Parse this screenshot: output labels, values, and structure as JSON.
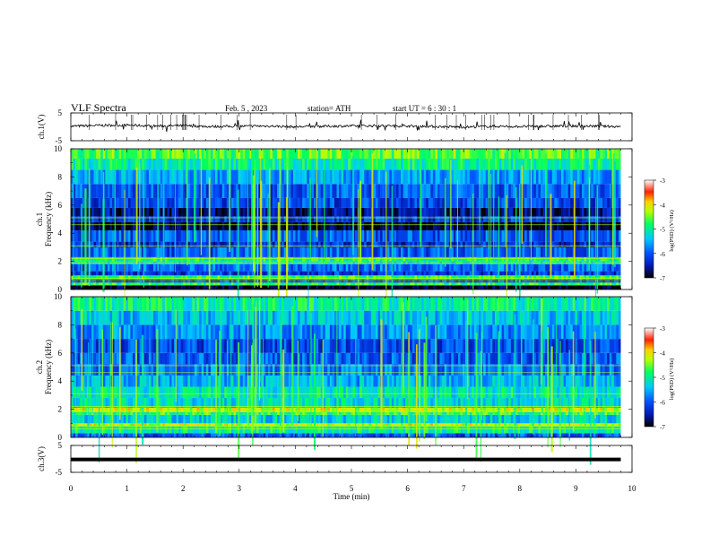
{
  "header": {
    "title": "VLF  Spectra",
    "date": "Feb. 5  , 2023",
    "station": "station= ATH",
    "start_ut": "start  UT  =   6  : 30 : 1"
  },
  "chart_data": [
    {
      "type": "line",
      "name": "ch1-waveform",
      "ylabel": "ch.1(V)",
      "ylim": [
        -5,
        5
      ],
      "yticks": [
        "5",
        "-5"
      ],
      "xlim": [
        0,
        10
      ],
      "x": [
        0.0,
        0.5,
        1.0,
        1.5,
        2.0,
        2.5,
        3.0,
        3.5,
        4.0,
        4.5,
        5.0,
        5.5,
        6.0,
        6.5,
        7.0,
        7.5,
        8.0,
        8.5,
        9.0,
        9.5,
        9.8
      ],
      "values": [
        0.2,
        0.5,
        0.6,
        0.3,
        0.4,
        0.1,
        0.2,
        0.3,
        0.0,
        0.2,
        0.3,
        0.4,
        0.3,
        0.1,
        -0.1,
        0.2,
        0.1,
        0.2,
        0.3,
        0.2,
        0.1
      ],
      "color": "#000000"
    },
    {
      "type": "heatmap",
      "name": "ch1-spectrogram",
      "ylabel_top": "ch.1",
      "ylabel": "Frequency  (kHz)",
      "ylim": [
        0,
        10
      ],
      "yticks": [
        "10",
        "8",
        "6",
        "4",
        "2",
        "0"
      ],
      "xlim": [
        0,
        9.8
      ],
      "colorbar": {
        "label": "log(PSD) (V²/Hz)",
        "ticks": [
          "-3",
          "-4",
          "-5",
          "-6",
          "-7"
        ],
        "range": [
          -7,
          -3
        ]
      },
      "bands": [
        {
          "from": 0.0,
          "to": 0.3,
          "level": -7.0
        },
        {
          "from": 0.3,
          "to": 0.5,
          "level": -4.8
        },
        {
          "from": 0.5,
          "to": 0.7,
          "level": -6.3
        },
        {
          "from": 0.7,
          "to": 1.0,
          "level": -4.8
        },
        {
          "from": 1.0,
          "to": 1.3,
          "level": -6.2
        },
        {
          "from": 1.3,
          "to": 1.8,
          "level": -5.9
        },
        {
          "from": 1.8,
          "to": 2.0,
          "level": -5.2
        },
        {
          "from": 2.0,
          "to": 2.3,
          "level": -4.9
        },
        {
          "from": 2.3,
          "to": 3.0,
          "level": -6.0
        },
        {
          "from": 3.0,
          "to": 3.4,
          "level": -6.3
        },
        {
          "from": 3.4,
          "to": 4.2,
          "level": -6.0
        },
        {
          "from": 4.2,
          "to": 4.8,
          "level": -6.9
        },
        {
          "from": 4.8,
          "to": 5.2,
          "level": -6.2
        },
        {
          "from": 5.2,
          "to": 5.8,
          "level": -6.6
        },
        {
          "from": 5.8,
          "to": 6.5,
          "level": -6.1
        },
        {
          "from": 6.5,
          "to": 7.5,
          "level": -6.0
        },
        {
          "from": 7.5,
          "to": 8.5,
          "level": -5.6
        },
        {
          "from": 8.5,
          "to": 9.3,
          "level": -5.0
        },
        {
          "from": 9.3,
          "to": 10.0,
          "level": -4.6
        }
      ]
    },
    {
      "type": "heatmap",
      "name": "ch2-spectrogram",
      "ylabel_top": "ch.2",
      "ylabel": "Frequency  (kHz)",
      "ylim": [
        0,
        10
      ],
      "yticks": [
        "10",
        "8",
        "6",
        "4",
        "2",
        "0"
      ],
      "xlim": [
        0,
        9.8
      ],
      "colorbar": {
        "label": "log(PSD) (V²/Hz)",
        "ticks": [
          "-3",
          "-4",
          "-5",
          "-6",
          "-7"
        ],
        "range": [
          -7,
          -3
        ]
      },
      "bands": [
        {
          "from": 0.0,
          "to": 0.3,
          "level": -6.0
        },
        {
          "from": 0.3,
          "to": 0.8,
          "level": -5.0
        },
        {
          "from": 0.8,
          "to": 1.0,
          "level": -4.2
        },
        {
          "from": 1.0,
          "to": 1.6,
          "level": -5.3
        },
        {
          "from": 1.6,
          "to": 1.8,
          "level": -4.8
        },
        {
          "from": 1.8,
          "to": 2.1,
          "level": -4.2
        },
        {
          "from": 2.1,
          "to": 2.8,
          "level": -5.2
        },
        {
          "from": 2.8,
          "to": 3.6,
          "level": -5.1
        },
        {
          "from": 3.6,
          "to": 4.4,
          "level": -5.5
        },
        {
          "from": 4.4,
          "to": 5.2,
          "level": -5.8
        },
        {
          "from": 5.2,
          "to": 6.0,
          "level": -6.0
        },
        {
          "from": 6.0,
          "to": 7.0,
          "level": -6.1
        },
        {
          "from": 7.0,
          "to": 8.0,
          "level": -5.7
        },
        {
          "from": 8.0,
          "to": 9.0,
          "level": -5.4
        },
        {
          "from": 9.0,
          "to": 10.0,
          "level": -5.0
        }
      ]
    },
    {
      "type": "line",
      "name": "ch3-waveform",
      "ylabel": "ch.3(V)",
      "ylim": [
        -5,
        5
      ],
      "yticks": [
        "5",
        "-5"
      ],
      "xlim": [
        0,
        10
      ],
      "x": [
        0.0,
        9.8
      ],
      "values": [
        -0.2,
        -0.2
      ],
      "color": "#000000",
      "xlabel": "Time  (min)",
      "xticks": [
        "0",
        "1",
        "2",
        "3",
        "4",
        "5",
        "6",
        "7",
        "8",
        "9",
        "10"
      ]
    }
  ]
}
